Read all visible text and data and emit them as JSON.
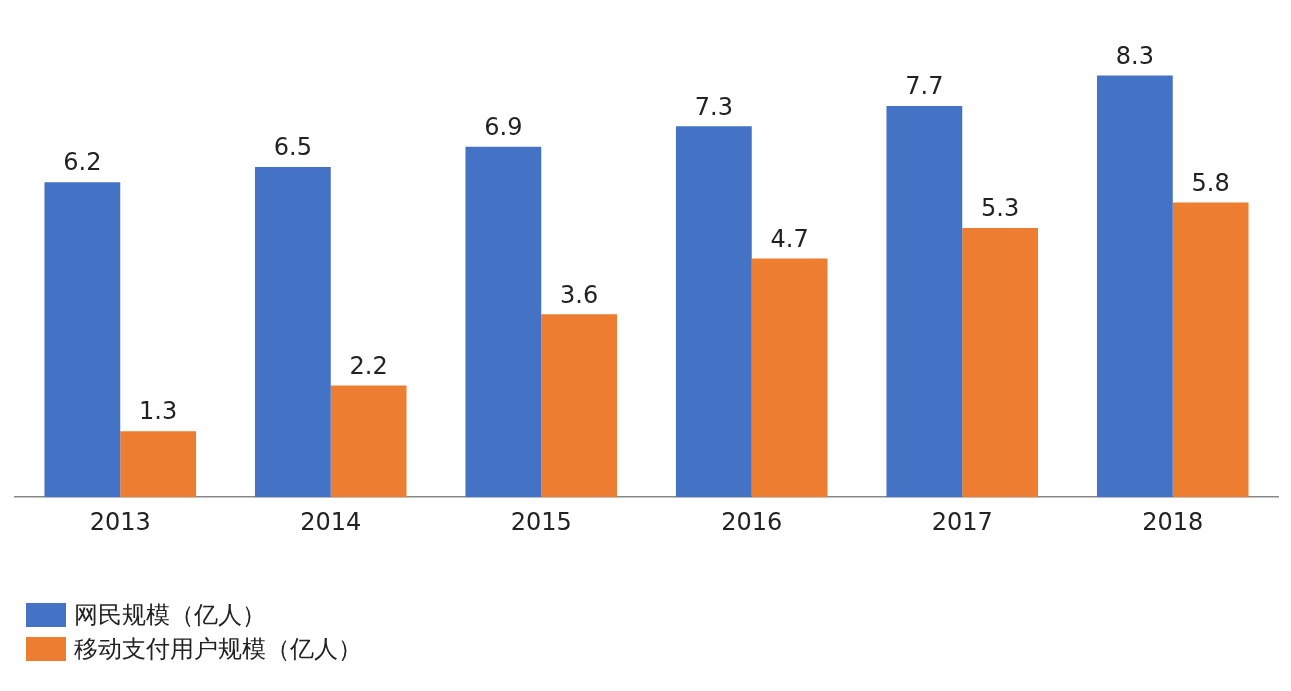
{
  "chart_data": {
    "type": "bar",
    "categories": [
      "2013",
      "2014",
      "2015",
      "2016",
      "2017",
      "2018"
    ],
    "series": [
      {
        "name": "网民规模（亿人）",
        "color": "#4472c4",
        "values": [
          6.2,
          6.5,
          6.9,
          7.3,
          7.7,
          8.3
        ]
      },
      {
        "name": "移动支付用户规模（亿人）",
        "color": "#ed7d31",
        "values": [
          1.3,
          2.2,
          3.6,
          4.7,
          5.3,
          5.8
        ]
      }
    ],
    "data_labels": true,
    "legend": "bottom left"
  }
}
